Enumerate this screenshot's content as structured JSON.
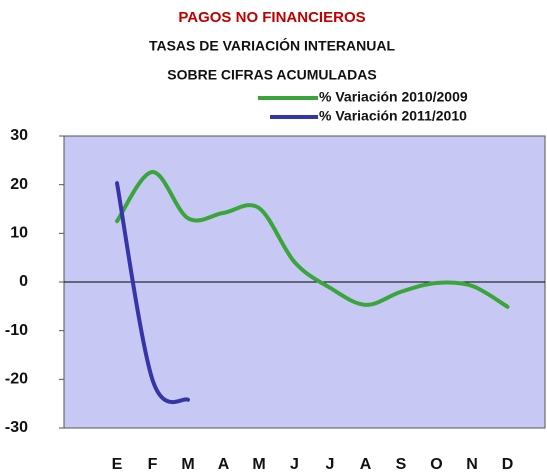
{
  "chart_data": {
    "type": "line",
    "title": "PAGOS NO FINANCIEROS",
    "subtitle": [
      "TASAS DE VARIACIÓN INTERANUAL",
      "SOBRE CIFRAS ACUMULADAS"
    ],
    "categories": [
      "E",
      "F",
      "M",
      "A",
      "M",
      "J",
      "J",
      "A",
      "S",
      "O",
      "N",
      "D"
    ],
    "series": [
      {
        "name": "% Variación 2010/2009",
        "color": "#3aa53a",
        "values": [
          12.5,
          22.6,
          13.1,
          14.2,
          15.2,
          4.1,
          -1.2,
          -4.7,
          -2,
          -0.2,
          -0.8,
          -5.1
        ]
      },
      {
        "name": "% Variación 2011/2010",
        "color": "#3535a8",
        "values": [
          20.3,
          -20.1,
          -24.2,
          null,
          null,
          null,
          null,
          null,
          null,
          null,
          null,
          null
        ]
      }
    ],
    "ylim": [
      -30,
      30
    ],
    "yticks": [
      30,
      20,
      10,
      0,
      -10,
      -20,
      -30
    ],
    "zero_line": true,
    "legend": "top-right",
    "background": "#c8c8f5"
  }
}
